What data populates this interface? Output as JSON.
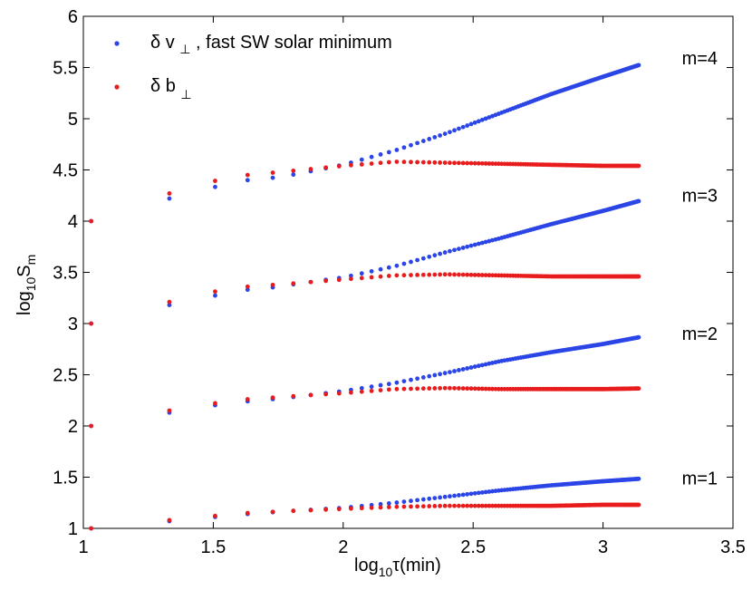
{
  "chart_data": {
    "type": "scatter",
    "title": "",
    "xlabel": {
      "prefix": "log",
      "sub": "10",
      "rest": "τ(min)"
    },
    "ylabel": {
      "prefix": "log",
      "sub": "10",
      "main": "S",
      "sub2": "m"
    },
    "xlim": [
      1,
      3.5
    ],
    "ylim": [
      1,
      6
    ],
    "xticks": [
      1,
      1.5,
      2,
      2.5,
      3,
      3.5
    ],
    "xtick_labels": [
      "1",
      "1.5",
      "2",
      "2.5",
      "3",
      "3.5"
    ],
    "yticks": [
      1,
      1.5,
      2,
      2.5,
      3,
      3.5,
      4,
      4.5,
      5,
      5.5,
      6
    ],
    "ytick_labels": [
      "1",
      "1.5",
      "2",
      "2.5",
      "3",
      "3.5",
      "4",
      "4.5",
      "5",
      "5.5",
      "6"
    ],
    "grid": false,
    "legend": {
      "position": "top-left",
      "entries": [
        {
          "series": "dv",
          "symbol": "δ",
          "var": "v",
          "sub": "⊥",
          "suffix": ", fast SW solar minimum"
        },
        {
          "series": "db",
          "symbol": "δ",
          "var": "b",
          "sub": "⊥",
          "suffix": ""
        }
      ]
    },
    "colors": {
      "dv": "#2b45e6",
      "db": "#e81c1c"
    },
    "annotations": [
      {
        "text": "m=4",
        "x": 3.23,
        "y": 5.6
      },
      {
        "text": "m=3",
        "x": 3.23,
        "y": 4.26
      },
      {
        "text": "m=2",
        "x": 3.23,
        "y": 2.91
      },
      {
        "text": "m=1",
        "x": 3.23,
        "y": 1.5
      }
    ],
    "x_range": [
      1.03,
      3.23
    ],
    "series": [
      {
        "name": "δ v⊥ m=1",
        "color_key": "dv",
        "m": 1,
        "anchor": [
          [
            1.03,
            1.0
          ],
          [
            1.33,
            1.07
          ],
          [
            1.5,
            1.11
          ],
          [
            1.63,
            1.14
          ],
          [
            1.8,
            1.17
          ],
          [
            2.0,
            1.2
          ],
          [
            2.2,
            1.25
          ],
          [
            2.4,
            1.31
          ],
          [
            2.6,
            1.37
          ],
          [
            2.8,
            1.42
          ],
          [
            3.0,
            1.46
          ],
          [
            3.23,
            1.5
          ]
        ]
      },
      {
        "name": "δ b⊥ m=1",
        "color_key": "db",
        "m": 1,
        "anchor": [
          [
            1.03,
            1.0
          ],
          [
            1.33,
            1.08
          ],
          [
            1.5,
            1.12
          ],
          [
            1.63,
            1.15
          ],
          [
            1.8,
            1.17
          ],
          [
            2.0,
            1.19
          ],
          [
            2.2,
            1.21
          ],
          [
            2.4,
            1.22
          ],
          [
            2.6,
            1.22
          ],
          [
            2.8,
            1.22
          ],
          [
            3.0,
            1.23
          ],
          [
            3.23,
            1.23
          ]
        ]
      },
      {
        "name": "δ v⊥ m=2",
        "color_key": "dv",
        "m": 2,
        "anchor": [
          [
            1.03,
            2.0
          ],
          [
            1.33,
            2.13
          ],
          [
            1.5,
            2.2
          ],
          [
            1.63,
            2.24
          ],
          [
            1.72,
            2.26
          ],
          [
            1.8,
            2.28
          ],
          [
            2.0,
            2.34
          ],
          [
            2.2,
            2.42
          ],
          [
            2.4,
            2.52
          ],
          [
            2.6,
            2.63
          ],
          [
            2.8,
            2.72
          ],
          [
            3.0,
            2.8
          ],
          [
            3.23,
            2.91
          ]
        ]
      },
      {
        "name": "δ b⊥ m=2",
        "color_key": "db",
        "m": 2,
        "anchor": [
          [
            1.03,
            2.0
          ],
          [
            1.33,
            2.15
          ],
          [
            1.5,
            2.22
          ],
          [
            1.63,
            2.26
          ],
          [
            1.8,
            2.29
          ],
          [
            2.0,
            2.32
          ],
          [
            2.2,
            2.36
          ],
          [
            2.4,
            2.37
          ],
          [
            2.6,
            2.36
          ],
          [
            2.8,
            2.36
          ],
          [
            3.0,
            2.36
          ],
          [
            3.23,
            2.37
          ]
        ]
      },
      {
        "name": "δ v⊥ m=3",
        "color_key": "dv",
        "m": 3,
        "anchor": [
          [
            1.03,
            3.0
          ],
          [
            1.33,
            3.18
          ],
          [
            1.5,
            3.27
          ],
          [
            1.63,
            3.33
          ],
          [
            1.72,
            3.35
          ],
          [
            1.8,
            3.38
          ],
          [
            2.0,
            3.45
          ],
          [
            2.2,
            3.56
          ],
          [
            2.4,
            3.7
          ],
          [
            2.6,
            3.83
          ],
          [
            2.8,
            3.97
          ],
          [
            3.0,
            4.1
          ],
          [
            3.23,
            4.26
          ]
        ]
      },
      {
        "name": "δ b⊥ m=3",
        "color_key": "db",
        "m": 3,
        "anchor": [
          [
            1.03,
            3.0
          ],
          [
            1.33,
            3.21
          ],
          [
            1.5,
            3.31
          ],
          [
            1.63,
            3.36
          ],
          [
            1.8,
            3.39
          ],
          [
            2.0,
            3.43
          ],
          [
            2.2,
            3.47
          ],
          [
            2.4,
            3.48
          ],
          [
            2.6,
            3.47
          ],
          [
            2.8,
            3.46
          ],
          [
            3.0,
            3.46
          ],
          [
            3.23,
            3.46
          ]
        ]
      },
      {
        "name": "δ v⊥ m=4",
        "color_key": "dv",
        "m": 4,
        "anchor": [
          [
            1.03,
            4.0
          ],
          [
            1.33,
            4.22
          ],
          [
            1.5,
            4.33
          ],
          [
            1.63,
            4.4
          ],
          [
            1.72,
            4.42
          ],
          [
            1.8,
            4.45
          ],
          [
            2.0,
            4.55
          ],
          [
            2.2,
            4.69
          ],
          [
            2.4,
            4.86
          ],
          [
            2.6,
            5.05
          ],
          [
            2.8,
            5.24
          ],
          [
            3.0,
            5.41
          ],
          [
            3.23,
            5.6
          ]
        ]
      },
      {
        "name": "δ b⊥ m=4",
        "color_key": "db",
        "m": 4,
        "anchor": [
          [
            1.03,
            4.0
          ],
          [
            1.33,
            4.27
          ],
          [
            1.5,
            4.39
          ],
          [
            1.63,
            4.45
          ],
          [
            1.8,
            4.49
          ],
          [
            2.0,
            4.54
          ],
          [
            2.2,
            4.58
          ],
          [
            2.4,
            4.57
          ],
          [
            2.6,
            4.56
          ],
          [
            2.8,
            4.55
          ],
          [
            3.0,
            4.54
          ],
          [
            3.23,
            4.54
          ]
        ]
      }
    ]
  }
}
